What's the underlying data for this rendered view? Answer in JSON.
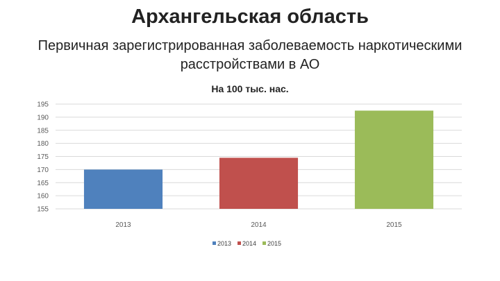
{
  "slide": {
    "title": "Архангельская область",
    "subtitle": "Первичная зарегистрированная заболеваемость наркотическими расстройствами в АО"
  },
  "chart_data": {
    "type": "bar",
    "title": "На 100 тыс. нас.",
    "xlabel": "",
    "ylabel": "",
    "categories": [
      "2013",
      "2014",
      "2015"
    ],
    "values": [
      170,
      174.5,
      192.5
    ],
    "colors": [
      "#4F81BD",
      "#C0504D",
      "#9BBB59"
    ],
    "ylim": [
      155,
      195
    ],
    "yticks": [
      155,
      160,
      165,
      170,
      175,
      180,
      185,
      190,
      195
    ],
    "grid": true,
    "legend": {
      "position": "bottom",
      "entries": [
        "2013",
        "2014",
        "2015"
      ]
    }
  }
}
